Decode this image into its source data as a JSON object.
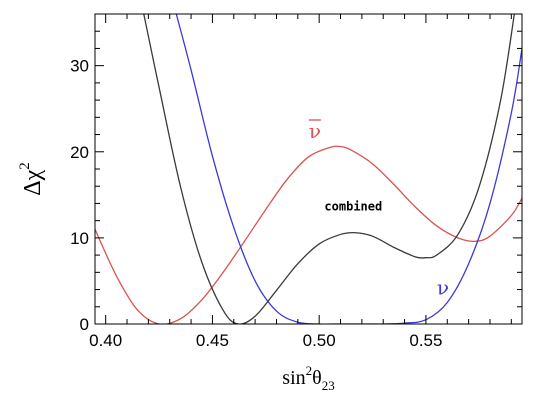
{
  "chart_data": {
    "type": "line",
    "xlabel_base": "sin",
    "xlabel_sup": "2",
    "xlabel_theta": "θ",
    "xlabel_sub": "23",
    "ylabel_base": "Δχ",
    "ylabel_sup": "2",
    "xlim": [
      0.395,
      0.595
    ],
    "ylim": [
      0,
      36
    ],
    "x_ticks": [
      "0.40",
      "0.45",
      "0.50",
      "0.55"
    ],
    "x_tick_values": [
      0.4,
      0.45,
      0.5,
      0.55
    ],
    "y_ticks": [
      "0",
      "10",
      "20",
      "30"
    ],
    "y_tick_values": [
      0,
      10,
      20,
      30
    ],
    "series": [
      {
        "name": "ν̄",
        "color": "#d9534f",
        "x": [
          0.395,
          0.405,
          0.415,
          0.425,
          0.435,
          0.445,
          0.455,
          0.465,
          0.475,
          0.485,
          0.495,
          0.505,
          0.51,
          0.515,
          0.525,
          0.535,
          0.545,
          0.555,
          0.565,
          0.573,
          0.58,
          0.59,
          0.595
        ],
        "y": [
          11.0,
          5.6,
          1.6,
          0.0,
          0.6,
          2.8,
          6.0,
          9.6,
          13.3,
          16.8,
          19.4,
          20.5,
          20.6,
          20.2,
          18.6,
          16.2,
          13.6,
          11.4,
          10.0,
          9.6,
          10.2,
          12.6,
          14.6
        ]
      },
      {
        "name": "ν",
        "color": "#3a3ad6",
        "x": [
          0.432,
          0.44,
          0.45,
          0.46,
          0.47,
          0.48,
          0.49,
          0.5,
          0.51,
          0.52,
          0.53,
          0.54,
          0.55,
          0.56,
          0.57,
          0.58,
          0.59,
          0.595
        ],
        "y": [
          37.0,
          29.5,
          19.5,
          11.2,
          5.0,
          1.5,
          0.2,
          0.0,
          0.0,
          0.0,
          0.0,
          0.1,
          0.5,
          2.5,
          7.0,
          14.0,
          24.5,
          32.0
        ]
      },
      {
        "name": "combined",
        "color": "#3a3a3a",
        "x": [
          0.417,
          0.425,
          0.435,
          0.445,
          0.455,
          0.462,
          0.47,
          0.48,
          0.49,
          0.5,
          0.51,
          0.517,
          0.525,
          0.535,
          0.545,
          0.55,
          0.555,
          0.565,
          0.575,
          0.585,
          0.592
        ],
        "y": [
          37.0,
          27.5,
          16.0,
          7.2,
          1.6,
          0.0,
          0.9,
          3.9,
          7.0,
          9.3,
          10.4,
          10.6,
          10.2,
          8.9,
          7.8,
          7.7,
          8.0,
          10.4,
          16.0,
          26.0,
          37.0
        ]
      }
    ],
    "annotations": [
      {
        "text": "ν",
        "overline": true,
        "x": 0.498,
        "y": 21.6,
        "color": "#d9534f"
      },
      {
        "text": "ν",
        "overline": false,
        "x": 0.558,
        "y": 3.4,
        "color": "#3a3ad6"
      },
      {
        "text": "combined",
        "overline": false,
        "x": 0.516,
        "y": 13.2,
        "color": "#000000"
      }
    ]
  }
}
